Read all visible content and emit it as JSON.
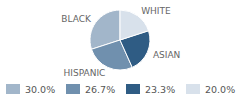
{
  "chart_data": {
    "type": "pie",
    "categories": [
      "BLACK",
      "HISPANIC",
      "ASIAN",
      "WHITE"
    ],
    "values": [
      30,
      26.7,
      23.3,
      20
    ],
    "value_labels": [
      "30.0%",
      "26.7%",
      "23.3%",
      "20.0%"
    ],
    "colors": [
      "#a2b6ca",
      "#7090ae",
      "#2f5c84",
      "#d8e1eb"
    ],
    "legend": "bottom"
  }
}
